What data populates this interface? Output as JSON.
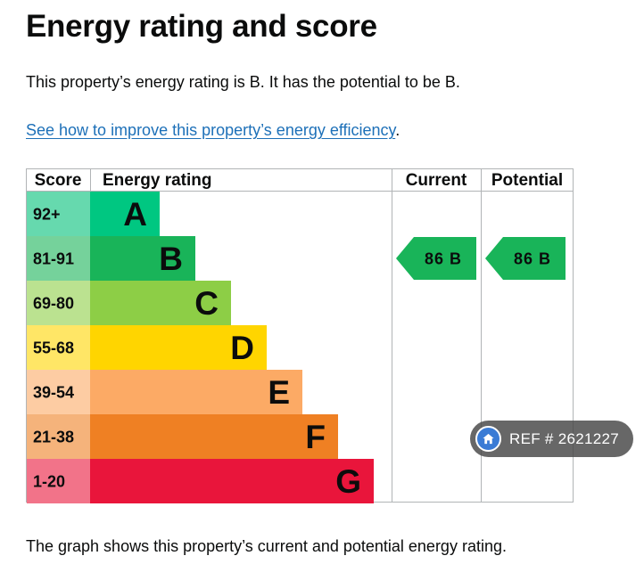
{
  "page": {
    "title": "Energy rating and score",
    "intro": "This property’s energy rating is B. It has the potential to be B.",
    "link_text": "See how to improve this property’s energy efficiency",
    "link_suffix": ".",
    "caption": "The graph shows this property’s current and potential energy rating."
  },
  "watermark": {
    "text": "REF # 2621227",
    "icon": "home-icon"
  },
  "chart_data": {
    "type": "table",
    "columns": [
      "Score",
      "Energy rating",
      "Current",
      "Potential"
    ],
    "bands": [
      {
        "score": "92+",
        "rating": "A",
        "color": "#00c781",
        "score_bg": "#66d9ae"
      },
      {
        "score": "81-91",
        "rating": "B",
        "color": "#19b459",
        "score_bg": "#75d29b"
      },
      {
        "score": "69-80",
        "rating": "C",
        "color": "#8dce46",
        "score_bg": "#bbe290"
      },
      {
        "score": "55-68",
        "rating": "D",
        "color": "#ffd500",
        "score_bg": "#ffe666"
      },
      {
        "score": "39-54",
        "rating": "E",
        "color": "#fcaa65",
        "score_bg": "#fdcca3"
      },
      {
        "score": "21-38",
        "rating": "F",
        "color": "#ef8023",
        "score_bg": "#f5b37b"
      },
      {
        "score": "1-20",
        "rating": "G",
        "color": "#e9153b",
        "score_bg": "#f27389"
      }
    ],
    "current": {
      "score": 86,
      "rating": "B",
      "label": "86 B",
      "color": "#19b459"
    },
    "potential": {
      "score": 86,
      "rating": "B",
      "label": "86 B",
      "color": "#19b459"
    }
  }
}
